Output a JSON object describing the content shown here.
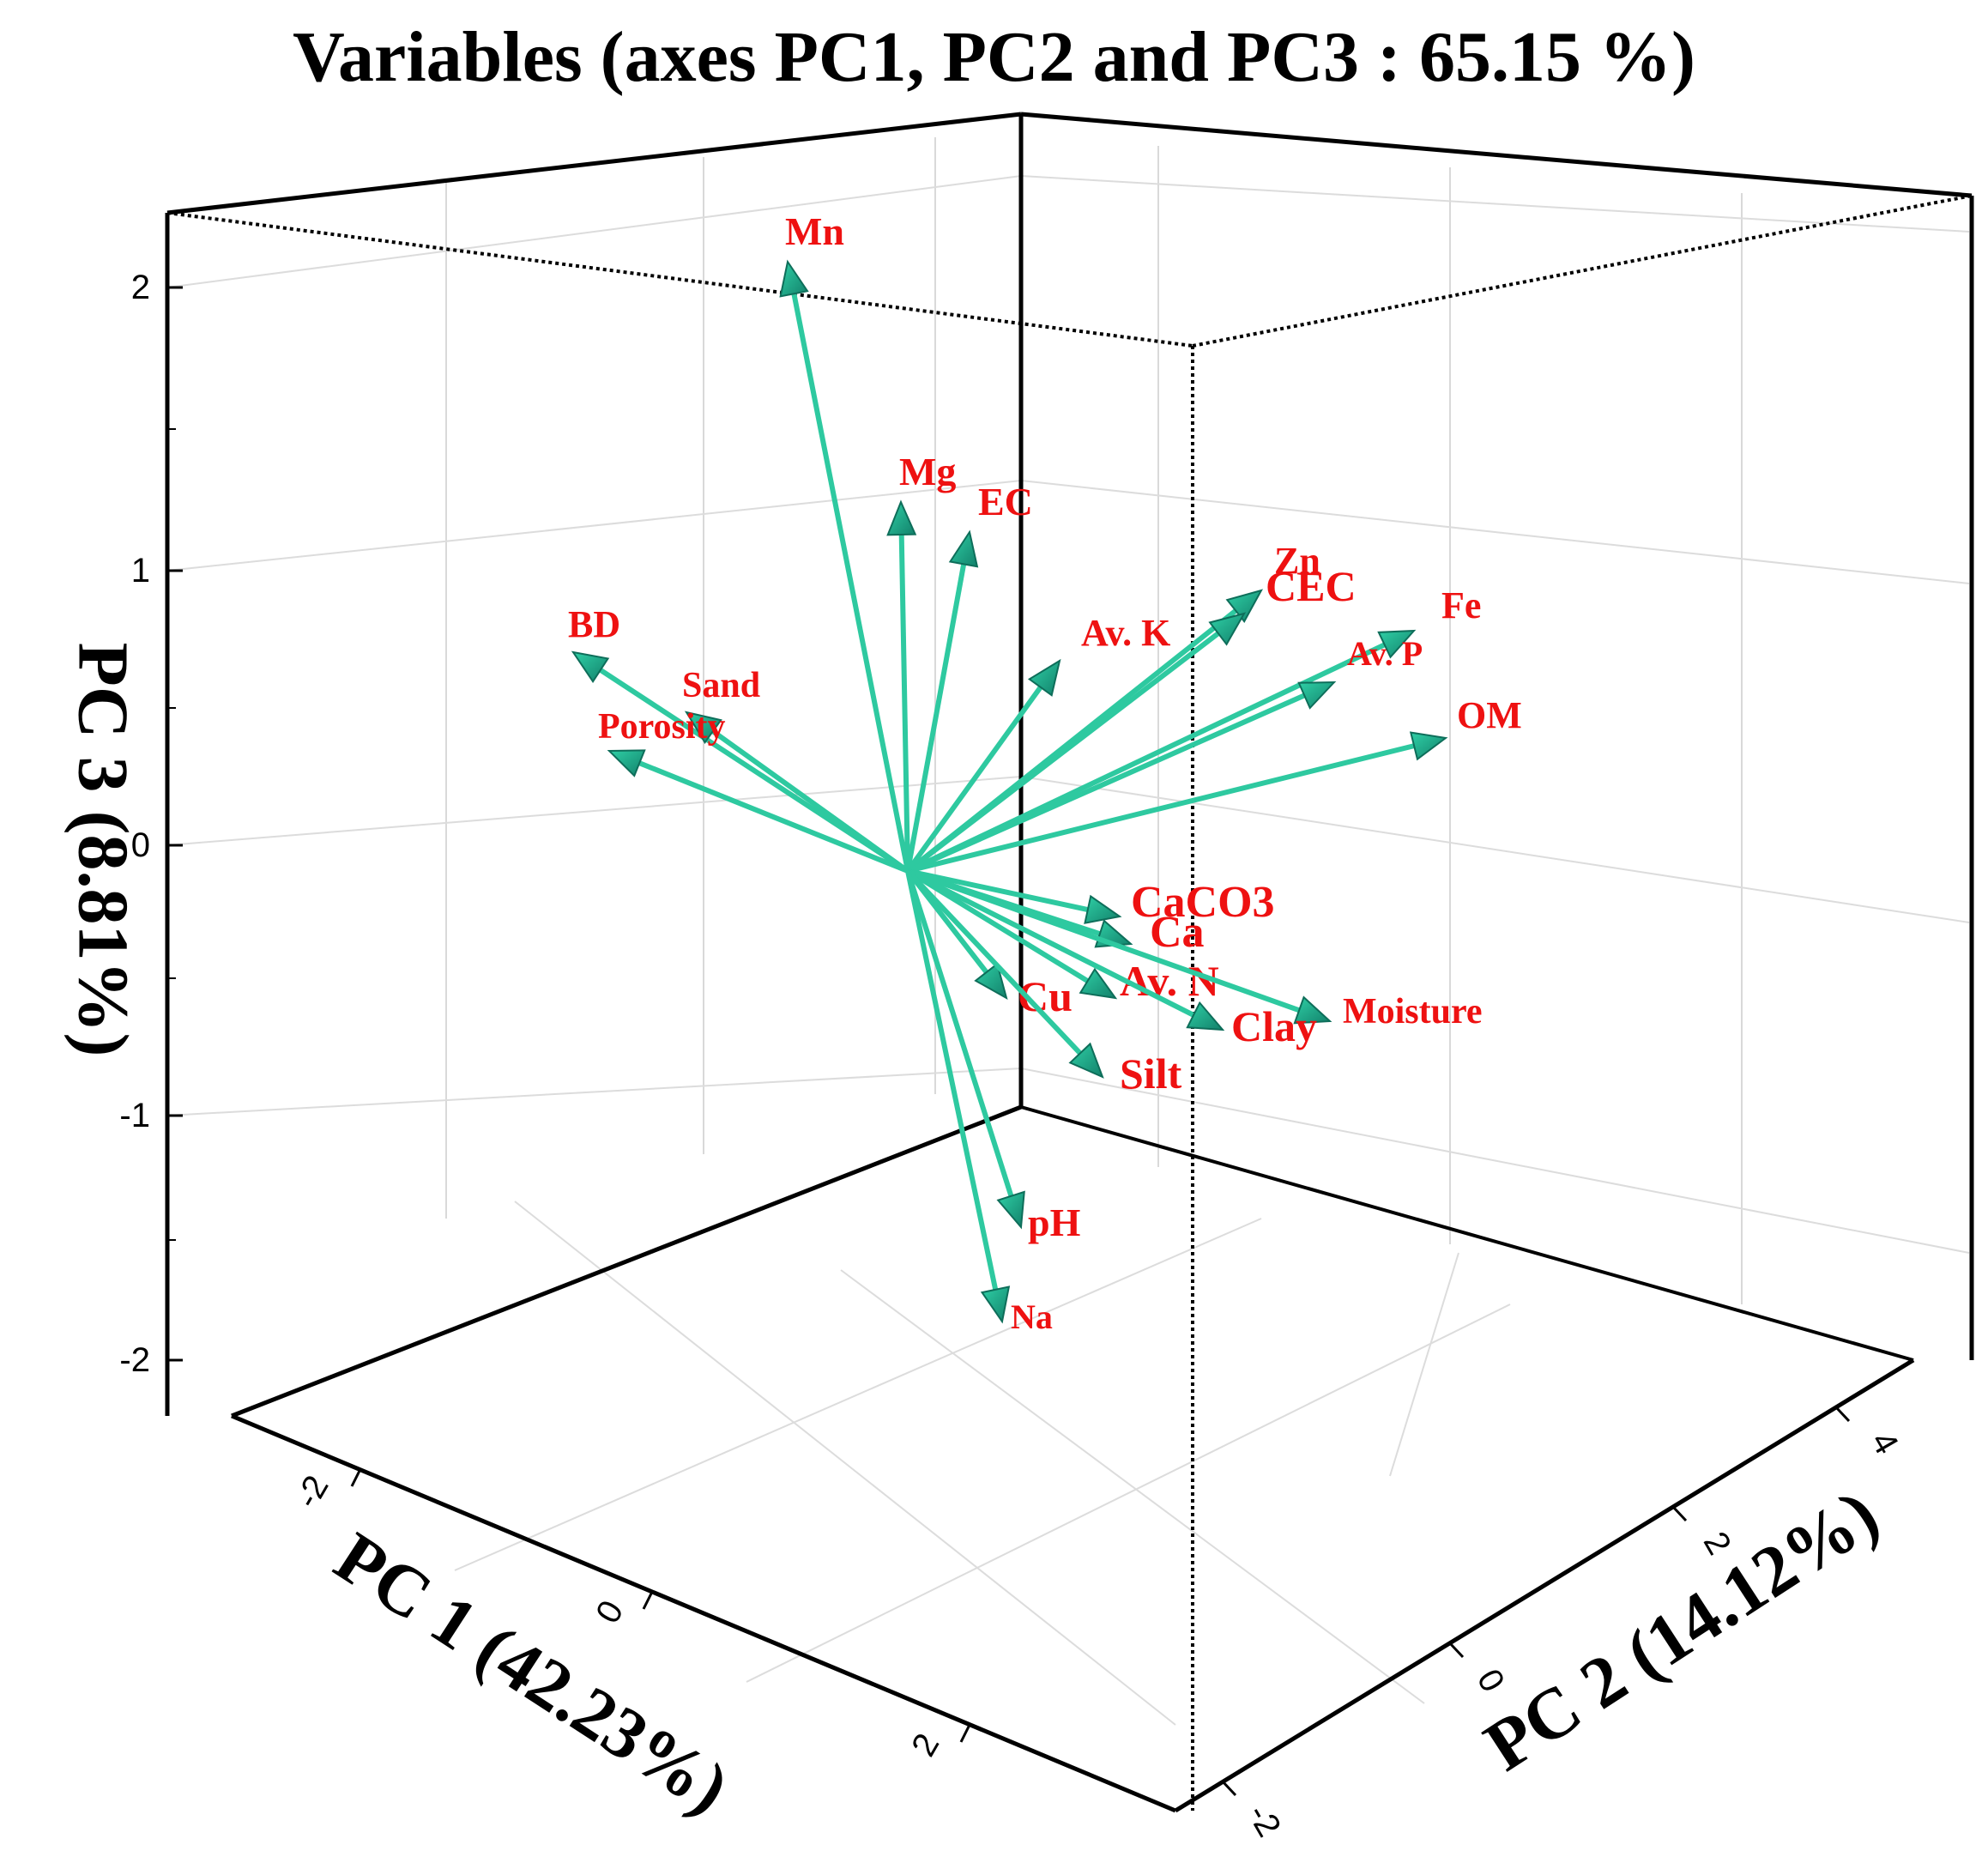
{
  "chart_data": {
    "type": "3d-vector-biplot",
    "title": "Variables (axes PC1, PC2 and PC3 : 65.15 %)",
    "xlabel": "PC 1 (42.23%)",
    "ylabel": "PC 2 (14.12%)",
    "zlabel": "PC 3 (8.81%)",
    "z_ticks": [
      "2",
      "1",
      "0",
      "-1",
      "-2"
    ],
    "x_ticks": [
      "-2",
      "0",
      "2"
    ],
    "y_ticks": [
      "-2",
      "0",
      "2",
      "4"
    ],
    "xlim": [
      -3,
      3
    ],
    "ylim": [
      -2,
      4.5
    ],
    "zlim": [
      -2,
      2.2
    ],
    "arrow_color": "#2ec9a0",
    "label_color": "#ee1111",
    "variables": [
      {
        "name": "Mn",
        "pc3": 2.05
      },
      {
        "name": "Mg",
        "pc3": 1.2
      },
      {
        "name": "EC",
        "pc3": 1.13
      },
      {
        "name": "Zn",
        "pc3": 0.92
      },
      {
        "name": "CEC",
        "pc3": 0.85
      },
      {
        "name": "Fe",
        "pc3": 0.77
      },
      {
        "name": "Av. K",
        "pc3": 0.65
      },
      {
        "name": "Av. P",
        "pc3": 0.58
      },
      {
        "name": "BD",
        "pc3": 0.7
      },
      {
        "name": "Sand",
        "pc3": 0.47
      },
      {
        "name": "Porosity",
        "pc3": 0.32
      },
      {
        "name": "OM",
        "pc3": 0.38
      },
      {
        "name": "CaCO3",
        "pc3": -0.27
      },
      {
        "name": "Ca",
        "pc3": -0.38
      },
      {
        "name": "Cu",
        "pc3": -0.6
      },
      {
        "name": "Av. N",
        "pc3": -0.6
      },
      {
        "name": "Moisture",
        "pc3": -0.67
      },
      {
        "name": "Clay",
        "pc3": -0.72
      },
      {
        "name": "Silt",
        "pc3": -0.88
      },
      {
        "name": "pH",
        "pc3": -1.45
      },
      {
        "name": "Na",
        "pc3": -1.8
      }
    ]
  }
}
